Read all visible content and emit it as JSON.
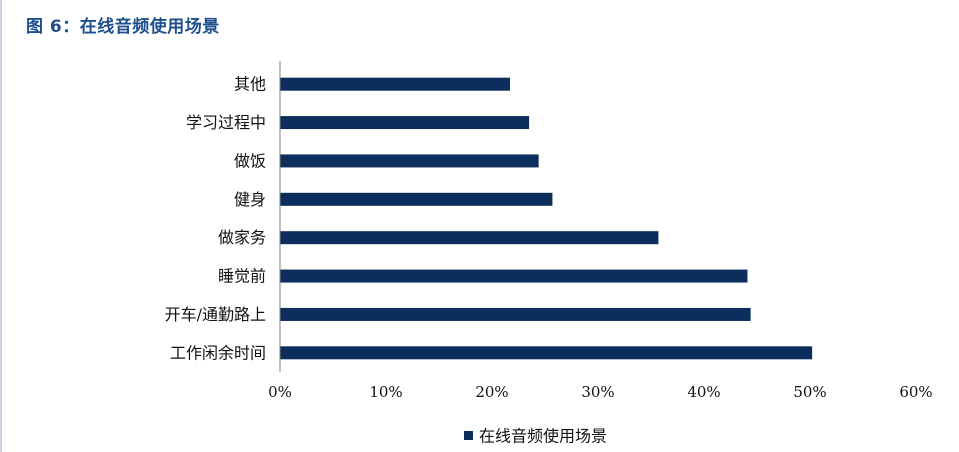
{
  "header": {
    "title": "图 6：在线音频使用场景"
  },
  "colors": {
    "bar": "#0b2e5c",
    "title": "#1f4e8c",
    "axis": "#808080"
  },
  "chart_data": {
    "type": "bar",
    "orientation": "horizontal",
    "categories": [
      "其他",
      "学习过程中",
      "做饭",
      "健身",
      "做家务",
      "睡觉前",
      "开车/通勤路上",
      "工作闲余时间"
    ],
    "series": [
      {
        "name": "在线音频使用场景",
        "values": [
          21.7,
          23.5,
          24.4,
          25.7,
          35.7,
          44.1,
          44.4,
          50.2
        ]
      }
    ],
    "xlim": [
      0,
      60
    ],
    "xticks": [
      0,
      10,
      20,
      30,
      40,
      50,
      60
    ],
    "tick_labels": [
      "0%",
      "10%",
      "20%",
      "30%",
      "40%",
      "50%",
      "60%"
    ],
    "value_unit": "%",
    "grid": false,
    "legend": "bottom-center",
    "title": "",
    "xlabel": "",
    "ylabel": ""
  }
}
